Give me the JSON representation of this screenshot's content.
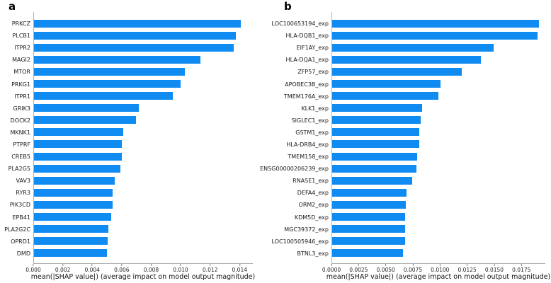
{
  "figure": {
    "background": "#ffffff",
    "panels": [
      {
        "letter": "a",
        "xlabel": "mean(|SHAP value|) (average impact on model output magnitude)"
      },
      {
        "letter": "b",
        "xlabel": "mean(|SHAP value|) (average impact on model output magnitude)"
      }
    ]
  },
  "chart_data": [
    {
      "type": "bar",
      "orientation": "horizontal",
      "panel": "a",
      "title": "",
      "xlabel": "mean(|SHAP value|) (average impact on model output magnitude)",
      "ylabel": "",
      "grid": false,
      "legend": false,
      "bar_color": "#0F8BF2",
      "categories": [
        "PRKCZ",
        "PLCB1",
        "ITPR2",
        "MAGI2",
        "MTOR",
        "PRKG1",
        "ITPR1",
        "GRIK3",
        "DOCK2",
        "MKNK1",
        "PTPRF",
        "CREB5",
        "PLA2G5",
        "VAV3",
        "RYR3",
        "PIK3CD",
        "EPB41",
        "PLA2G2C",
        "OPRD1",
        "DMD"
      ],
      "values": [
        0.0141,
        0.01375,
        0.01362,
        0.01133,
        0.01028,
        0.00996,
        0.00945,
        0.00715,
        0.00694,
        0.00608,
        0.00597,
        0.00596,
        0.00589,
        0.00548,
        0.00536,
        0.00533,
        0.00524,
        0.00506,
        0.00501,
        0.00499
      ],
      "xtick_labels": [
        "0.000",
        "0.002",
        "0.004",
        "0.006",
        "0.008",
        "0.010",
        "0.012",
        "0.014"
      ],
      "xtick_values": [
        0.0,
        0.002,
        0.004,
        0.006,
        0.008,
        0.01,
        0.012,
        0.014
      ],
      "xlim": [
        0,
        0.0149
      ]
    },
    {
      "type": "bar",
      "orientation": "horizontal",
      "panel": "b",
      "title": "",
      "xlabel": "mean(|SHAP value|) (average impact on model output magnitude)",
      "ylabel": "",
      "grid": false,
      "legend": false,
      "bar_color": "#0F8BF2",
      "categories": [
        "LOC100653194_exp",
        "HLA-DQB1_exp",
        "EIF1AY_exp",
        "HLA-DQA1_exp",
        "ZFP57_exp",
        "APOBEC3B_exp",
        "TMEM176A_exp",
        "KLK1_exp",
        "SIGLEC1_exp",
        "GSTM1_exp",
        "HLA-DRB4_exp",
        "TMEM158_exp",
        "ENSG00000206239_exp",
        "RNASE1_exp",
        "DEFA4_exp",
        "ORM2_exp",
        "KDM5D_exp",
        "MGC39372_exp",
        "LOC100505946_exp",
        "BTNL3_exp"
      ],
      "values": [
        0.0191,
        0.01895,
        0.01495,
        0.01374,
        0.01198,
        0.01003,
        0.00983,
        0.00833,
        0.00816,
        0.00808,
        0.00807,
        0.00784,
        0.00779,
        0.0074,
        0.0069,
        0.00683,
        0.00674,
        0.00673,
        0.00671,
        0.00653
      ],
      "xtick_labels": [
        "0.0000",
        "0.0025",
        "0.0050",
        "0.0075",
        "0.0100",
        "0.0125",
        "0.0150",
        "0.0175"
      ],
      "xtick_values": [
        0.0,
        0.0025,
        0.005,
        0.0075,
        0.01,
        0.0125,
        0.015,
        0.0175
      ],
      "xlim": [
        0,
        0.0197
      ]
    }
  ]
}
